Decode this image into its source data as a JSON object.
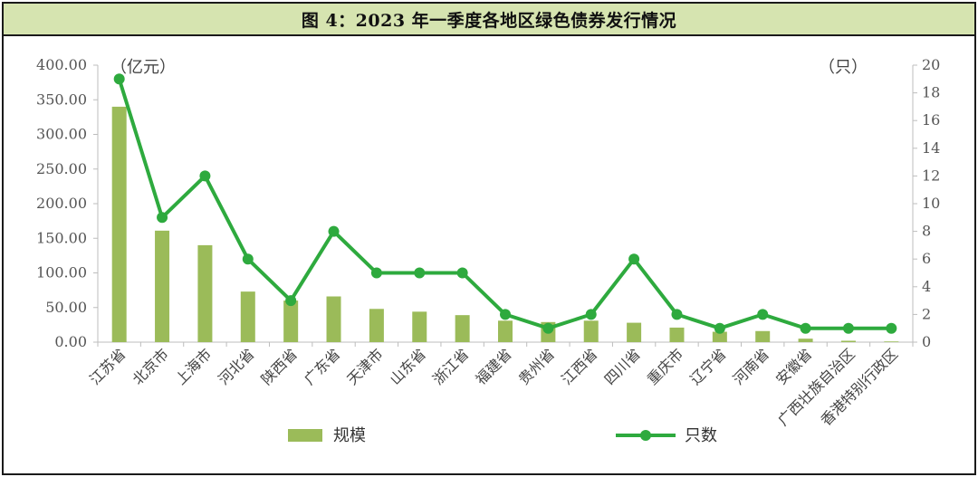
{
  "title": "图 4：2023 年一季度各地区绿色债券发行情况",
  "chart_data": {
    "type": "bar",
    "categories": [
      "江苏省",
      "北京市",
      "上海市",
      "河北省",
      "陕西省",
      "广东省",
      "天津市",
      "山东省",
      "浙江省",
      "福建省",
      "贵州省",
      "江西省",
      "四川省",
      "重庆市",
      "辽宁省",
      "河南省",
      "安徽省",
      "广西壮族自治区",
      "香港特别行政区"
    ],
    "series": [
      {
        "name": "规模",
        "type": "bar",
        "axis": "left",
        "color": "#9bbb59",
        "values": [
          340,
          161,
          140,
          73,
          60,
          66,
          48,
          44,
          39,
          31,
          29,
          31,
          28,
          21,
          15,
          16,
          5,
          2,
          1
        ]
      },
      {
        "name": "只数",
        "type": "line",
        "axis": "right",
        "color": "#2eaa3e",
        "values": [
          19,
          9,
          12,
          6,
          3,
          8,
          5,
          5,
          5,
          2,
          1,
          2,
          6,
          2,
          1,
          2,
          1,
          1,
          1
        ]
      }
    ],
    "left_axis": {
      "unit": "（亿元）",
      "ylim": [
        0,
        400
      ],
      "ticks": [
        "0.00",
        "50.00",
        "100.00",
        "150.00",
        "200.00",
        "250.00",
        "300.00",
        "350.00",
        "400.00"
      ]
    },
    "right_axis": {
      "unit": "（只）",
      "ylim": [
        0,
        20
      ],
      "ticks": [
        "0",
        "2",
        "4",
        "6",
        "8",
        "10",
        "12",
        "14",
        "16",
        "18",
        "20"
      ]
    },
    "legend": {
      "position": "bottom",
      "bar_label": "规模",
      "line_label": "只数"
    },
    "grid": false
  }
}
